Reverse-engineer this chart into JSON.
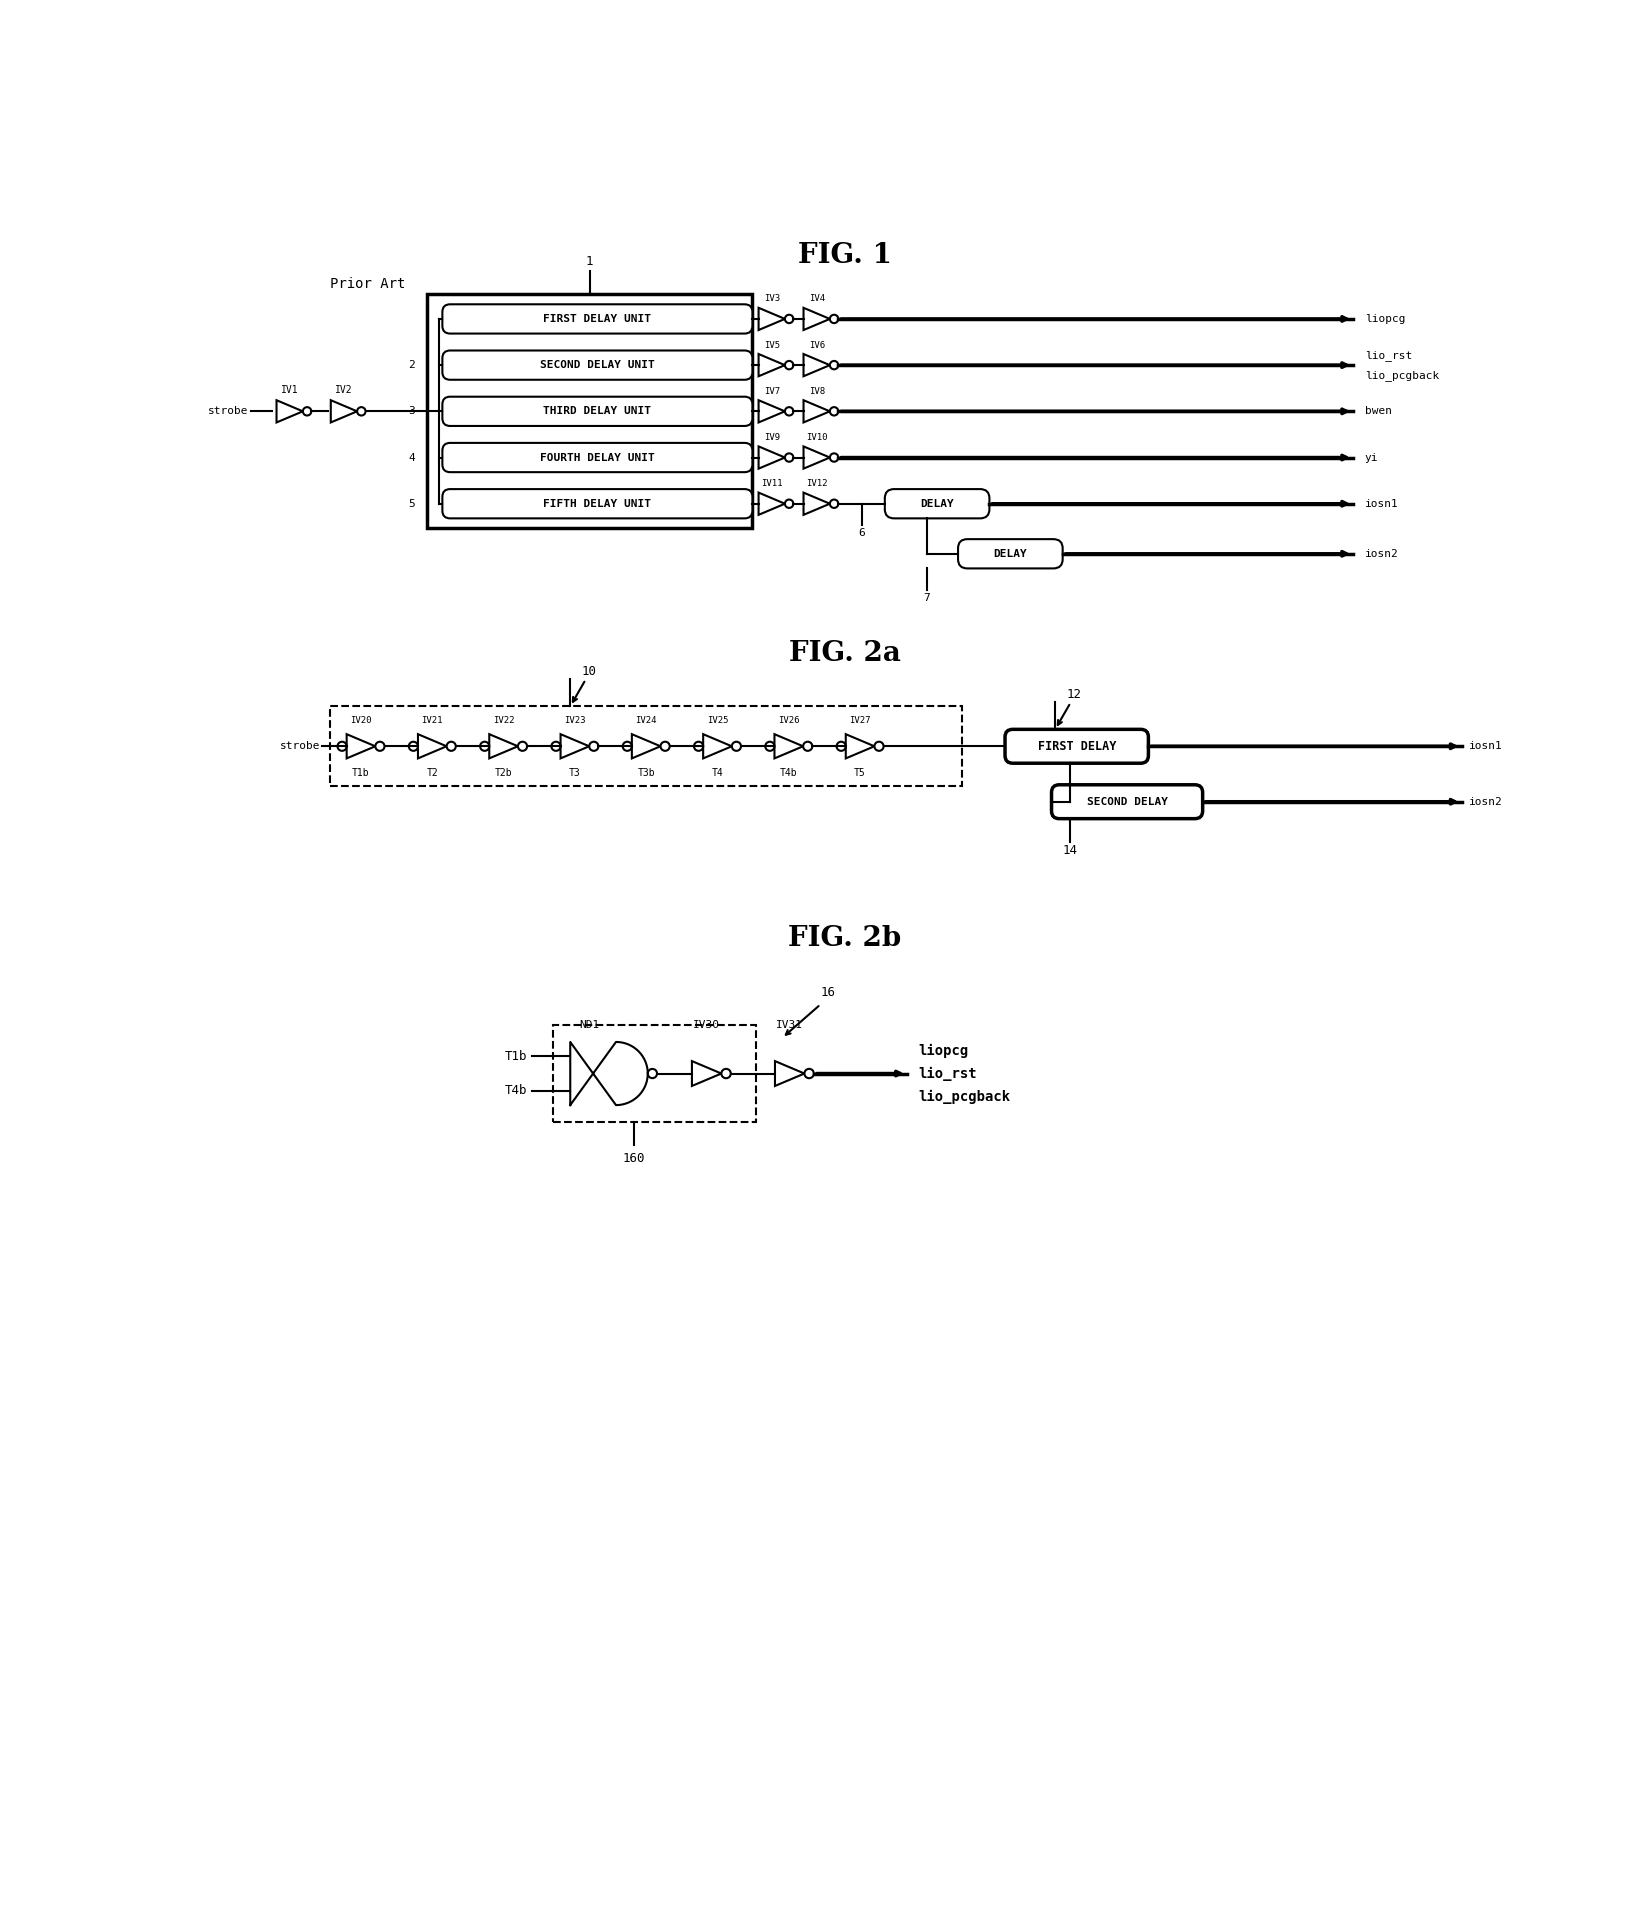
{
  "fig_title1": "FIG. 1",
  "fig_title2a": "FIG. 2a",
  "fig_title2b": "FIG. 2b",
  "prior_art": "Prior Art",
  "bg_color": "#ffffff",
  "line_color": "#000000",
  "lw": 1.5,
  "blw": 2.5,
  "fig1": {
    "delay_units": [
      "FIRST DELAY UNIT",
      "SECOND DELAY UNIT",
      "THIRD DELAY UNIT",
      "FOURTH DELAY UNIT",
      "FIFTH DELAY UNIT"
    ],
    "inv_left": [
      "IV1",
      "IV2"
    ],
    "inv_pairs": [
      [
        "IV3",
        "IV4"
      ],
      [
        "IV5",
        "IV6"
      ],
      [
        "IV7",
        "IV8"
      ],
      [
        "IV9",
        "IV10"
      ],
      [
        "IV11",
        "IV12"
      ]
    ],
    "out_labels": [
      "liopcg",
      "lio_rst",
      "lio_pcgback",
      "bwen",
      "yi",
      "iosn1",
      "iosn2"
    ],
    "side_labels": [
      "2",
      "3",
      "4",
      "5"
    ],
    "label1": "1",
    "label6": "6",
    "label7": "7"
  },
  "fig2a": {
    "inv_names": [
      "IV20",
      "IV21",
      "IV22",
      "IV23",
      "IV24",
      "IV25",
      "IV26",
      "IV27"
    ],
    "tap_names": [
      "T1b",
      "T2",
      "T2b",
      "T3",
      "T3b",
      "T4",
      "T4b",
      "T5"
    ],
    "delay1": "FIRST DELAY",
    "delay2": "SECOND DELAY",
    "out1": "iosn1",
    "out2": "iosn2",
    "label10": "10",
    "label12": "12",
    "label14": "14"
  },
  "fig2b": {
    "nand": "ND1",
    "inv1": "IV30",
    "inv2": "IV31",
    "in1": "T1b",
    "in2": "T4b",
    "out1": "liopcg",
    "out2": "lio_rst",
    "out3": "lio_pcgback",
    "box_lbl": "160",
    "arrow_lbl": "16"
  }
}
